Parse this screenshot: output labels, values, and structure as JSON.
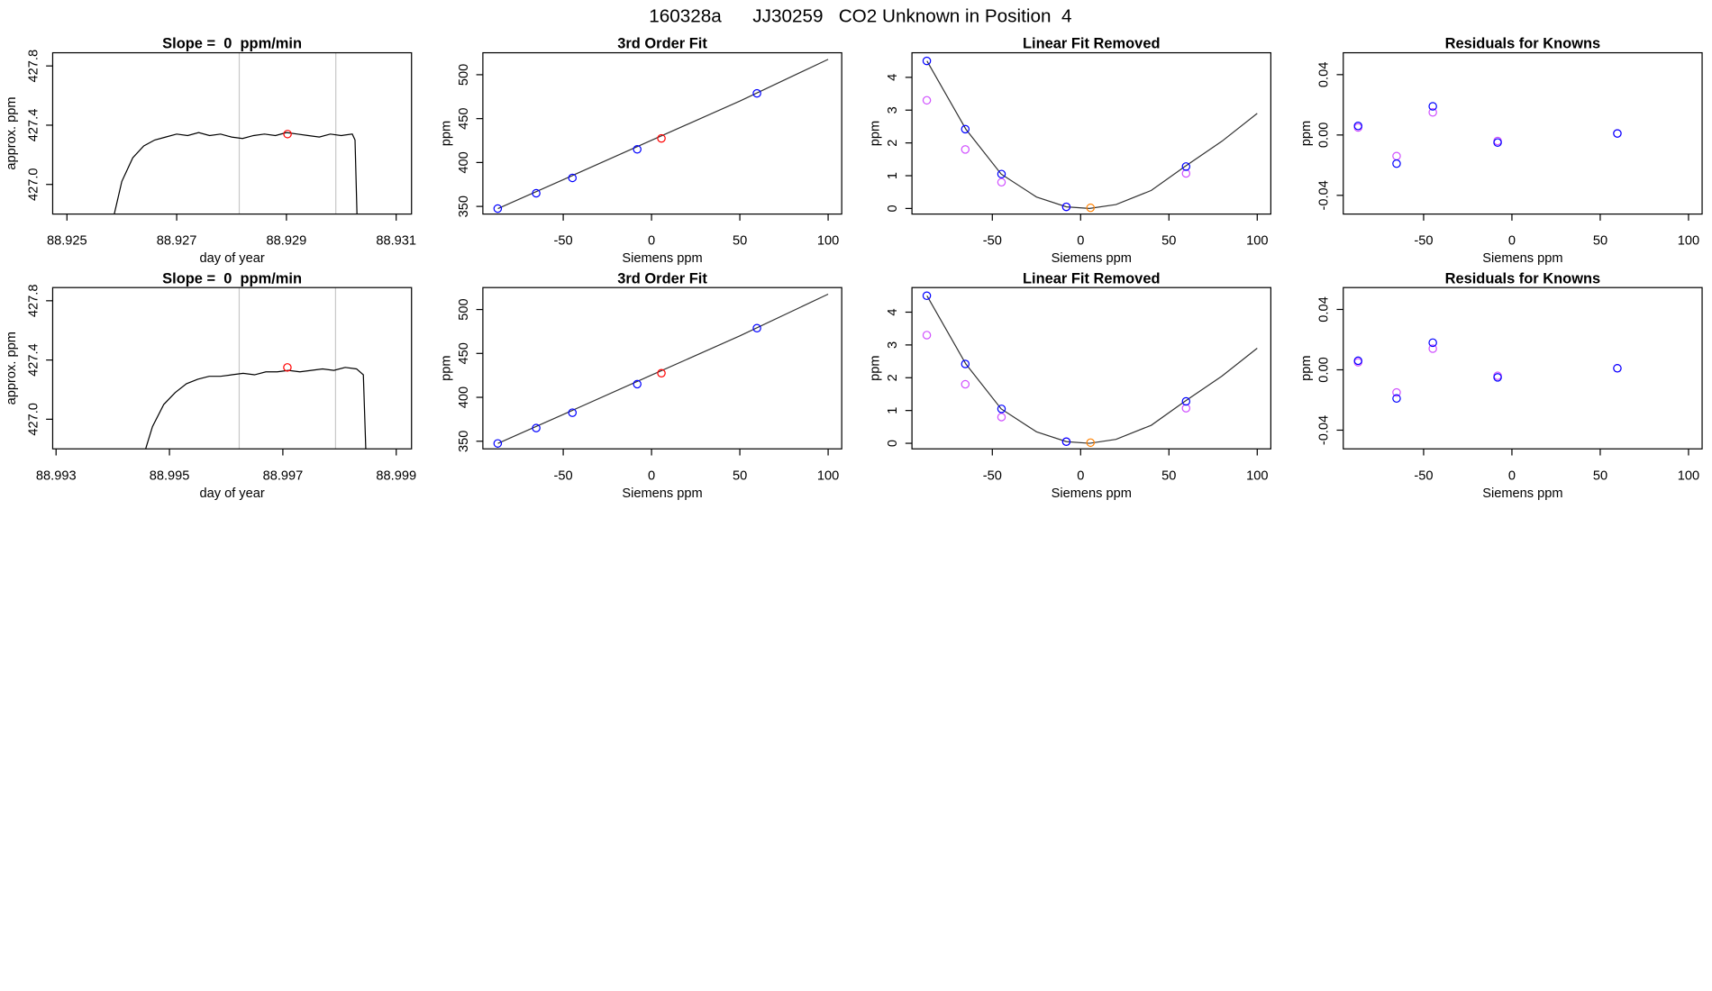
{
  "title": "160328a      JJ30259   CO2 Unknown in Position  4",
  "chart_data": [
    {
      "type": "line",
      "title": "Slope =  0  ppm/min",
      "xlabel": "day of year",
      "ylabel": "approx. ppm",
      "xlim": [
        88.92474,
        88.93128
      ],
      "ylim": [
        426.8,
        427.889
      ],
      "xticks": [
        88.925,
        88.927,
        88.929,
        88.931
      ],
      "yticks": [
        {
          "value": 427.0,
          "label": "427.0"
        },
        {
          "value": 427.4,
          "label": "427.4"
        },
        {
          "value": 427.8,
          "label": "427.8"
        }
      ],
      "vlines": [
        88.92814,
        88.9299
      ],
      "vline_color": "#c8c8c8",
      "series": [
        {
          "style": "line",
          "color": "#000000",
          "x": [
            88.9258,
            88.926,
            88.9262,
            88.9264,
            88.9266,
            88.9268,
            88.927,
            88.9272,
            88.9274,
            88.9276,
            88.9278,
            88.928,
            88.9282,
            88.9284,
            88.9286,
            88.9288,
            88.929,
            88.9292,
            88.9294,
            88.9296,
            88.9298,
            88.93,
            88.9302,
            88.93025,
            88.9303
          ],
          "values": [
            426.7,
            427.02,
            427.18,
            427.26,
            427.3,
            427.32,
            427.34,
            427.33,
            427.35,
            427.33,
            427.34,
            427.32,
            427.31,
            427.33,
            427.34,
            427.33,
            427.35,
            427.34,
            427.33,
            427.32,
            427.34,
            427.33,
            427.34,
            427.3,
            426.6
          ]
        },
        {
          "style": "points",
          "color": "#ff0000",
          "x": [
            88.92902
          ],
          "values": [
            427.34
          ]
        }
      ]
    },
    {
      "type": "scatter",
      "title": "3rd Order Fit",
      "xlabel": "Siemens ppm",
      "ylabel": "ppm",
      "xlim": [
        -95.5,
        107.7
      ],
      "ylim": [
        341.3,
        525
      ],
      "xticks": [
        -50,
        0,
        50,
        100
      ],
      "yticks": [
        350,
        400,
        450,
        500
      ],
      "series": [
        {
          "style": "line",
          "color": "#333333",
          "x": [
            -87,
            -50,
            0,
            50,
            100
          ],
          "values": [
            347.5,
            380.5,
            425.3,
            470,
            517.5
          ]
        },
        {
          "style": "points",
          "color": "#0000ff",
          "x": [
            -87.1,
            -65.3,
            -44.8,
            -8.1,
            59.7
          ],
          "values": [
            347.5,
            365,
            382.5,
            415,
            478.75
          ]
        },
        {
          "style": "points",
          "color": "#ff0000",
          "x": [
            5.6
          ],
          "values": [
            427.5
          ]
        }
      ]
    },
    {
      "type": "scatter",
      "title": "Linear Fit Removed",
      "xlabel": "Siemens ppm",
      "ylabel": "ppm",
      "xlim": [
        -95.5,
        107.7
      ],
      "ylim": [
        -0.17,
        4.75
      ],
      "xticks": [
        -50,
        0,
        50,
        100
      ],
      "yticks": [
        0,
        1,
        2,
        3,
        4
      ],
      "series": [
        {
          "style": "line",
          "color": "#333333",
          "x": [
            -87,
            -65,
            -45,
            -25,
            -8,
            5,
            20,
            40,
            59,
            80,
            100
          ],
          "values": [
            4.5,
            2.42,
            1.05,
            0.35,
            0.05,
            0,
            0.12,
            0.55,
            1.28,
            2.05,
            2.9
          ]
        },
        {
          "style": "points",
          "color": "#d050ff",
          "x": [
            -87.1,
            -65.3,
            -44.8,
            -8.1,
            59.7
          ],
          "values": [
            3.3,
            1.8,
            0.8,
            0.05,
            1.07
          ]
        },
        {
          "style": "points",
          "color": "#0000ff",
          "x": [
            -87.1,
            -65.3,
            -44.8,
            -8.1,
            59.7
          ],
          "values": [
            4.5,
            2.42,
            1.05,
            0.05,
            1.28
          ]
        },
        {
          "style": "points",
          "color": "#ff8000",
          "x": [
            5.6
          ],
          "values": [
            0.02
          ]
        }
      ]
    },
    {
      "type": "scatter",
      "title": "Residuals for Knowns",
      "xlabel": "Siemens ppm",
      "ylabel": "ppm",
      "xlim": [
        -95.5,
        107.7
      ],
      "ylim": [
        -0.0524,
        0.0545
      ],
      "xticks": [
        -50,
        0,
        50,
        100
      ],
      "yticks": [
        -0.04,
        {
          "value": 0,
          "label": "0.00"
        },
        0.04
      ],
      "series": [
        {
          "style": "points",
          "color": "#d050ff",
          "x": [
            -87.1,
            -65.3,
            -44.8,
            -8.1,
            59.7
          ],
          "values": [
            0.005,
            -0.014,
            0.015,
            -0.004,
            0.001
          ]
        },
        {
          "style": "points",
          "color": "#0000ff",
          "x": [
            -87.1,
            -65.3,
            -44.8,
            -8.1,
            59.7
          ],
          "values": [
            0.006,
            -0.019,
            0.019,
            -0.005,
            0.001
          ]
        }
      ]
    },
    {
      "type": "line",
      "title": "Slope =  0  ppm/min",
      "xlabel": "day of year",
      "ylabel": "approx. ppm",
      "xlim": [
        88.99294,
        88.99927
      ],
      "ylim": [
        426.8,
        427.889
      ],
      "xticks": [
        88.993,
        88.995,
        88.997,
        88.999
      ],
      "yticks": [
        {
          "value": 427.0,
          "label": "427.0"
        },
        {
          "value": 427.4,
          "label": "427.4"
        },
        {
          "value": 427.8,
          "label": "427.8"
        }
      ],
      "vlines": [
        88.99623,
        88.99793
      ],
      "vline_color": "#c8c8c8",
      "series": [
        {
          "style": "line",
          "color": "#000000",
          "x": [
            88.9945,
            88.9947,
            88.9949,
            88.9951,
            88.9953,
            88.9955,
            88.9957,
            88.9959,
            88.9961,
            88.9963,
            88.9965,
            88.9967,
            88.9969,
            88.9971,
            88.9973,
            88.9975,
            88.9977,
            88.9979,
            88.9981,
            88.9983,
            88.99842,
            88.99848
          ],
          "values": [
            426.7,
            426.95,
            427.1,
            427.18,
            427.24,
            427.27,
            427.29,
            427.29,
            427.3,
            427.31,
            427.3,
            427.32,
            427.32,
            427.33,
            427.32,
            427.33,
            427.34,
            427.33,
            427.35,
            427.34,
            427.3,
            426.6
          ]
        },
        {
          "style": "points",
          "color": "#ff0000",
          "x": [
            88.99708
          ],
          "values": [
            427.35
          ]
        }
      ]
    },
    {
      "type": "scatter",
      "title": "3rd Order Fit",
      "xlabel": "Siemens ppm",
      "ylabel": "ppm",
      "xlim": [
        -95.5,
        107.7
      ],
      "ylim": [
        341.3,
        525
      ],
      "xticks": [
        -50,
        0,
        50,
        100
      ],
      "yticks": [
        350,
        400,
        450,
        500
      ],
      "series": [
        {
          "style": "line",
          "color": "#333333",
          "x": [
            -87,
            -50,
            0,
            50,
            100
          ],
          "values": [
            347.5,
            380.5,
            425.3,
            470,
            517.5
          ]
        },
        {
          "style": "points",
          "color": "#0000ff",
          "x": [
            -87.1,
            -65.3,
            -44.8,
            -8.1,
            59.7
          ],
          "values": [
            347.5,
            365,
            382.5,
            415,
            478.75
          ]
        },
        {
          "style": "points",
          "color": "#ff0000",
          "x": [
            5.6
          ],
          "values": [
            427.5
          ]
        }
      ]
    },
    {
      "type": "scatter",
      "title": "Linear Fit Removed",
      "xlabel": "Siemens ppm",
      "ylabel": "ppm",
      "xlim": [
        -95.5,
        107.7
      ],
      "ylim": [
        -0.17,
        4.75
      ],
      "xticks": [
        -50,
        0,
        50,
        100
      ],
      "yticks": [
        0,
        1,
        2,
        3,
        4
      ],
      "series": [
        {
          "style": "line",
          "color": "#333333",
          "x": [
            -87,
            -65,
            -45,
            -25,
            -8,
            5,
            20,
            40,
            59,
            80,
            100
          ],
          "values": [
            4.5,
            2.42,
            1.05,
            0.35,
            0.05,
            0,
            0.12,
            0.55,
            1.28,
            2.05,
            2.9
          ]
        },
        {
          "style": "points",
          "color": "#d050ff",
          "x": [
            -87.1,
            -65.3,
            -44.8,
            -8.1,
            59.7
          ],
          "values": [
            3.3,
            1.8,
            0.8,
            0.05,
            1.07
          ]
        },
        {
          "style": "points",
          "color": "#0000ff",
          "x": [
            -87.1,
            -65.3,
            -44.8,
            -8.1,
            59.7
          ],
          "values": [
            4.5,
            2.42,
            1.05,
            0.05,
            1.28
          ]
        },
        {
          "style": "points",
          "color": "#ff8000",
          "x": [
            5.6
          ],
          "values": [
            0.02
          ]
        }
      ]
    },
    {
      "type": "scatter",
      "title": "Residuals for Knowns",
      "xlabel": "Siemens ppm",
      "ylabel": "ppm",
      "xlim": [
        -95.5,
        107.7
      ],
      "ylim": [
        -0.0524,
        0.0545
      ],
      "xticks": [
        -50,
        0,
        50,
        100
      ],
      "yticks": [
        -0.04,
        {
          "value": 0,
          "label": "0.00"
        },
        0.04
      ],
      "series": [
        {
          "style": "points",
          "color": "#d050ff",
          "x": [
            -87.1,
            -65.3,
            -44.8,
            -8.1,
            59.7
          ],
          "values": [
            0.005,
            -0.015,
            0.014,
            -0.004,
            0.001
          ]
        },
        {
          "style": "points",
          "color": "#0000ff",
          "x": [
            -87.1,
            -65.3,
            -44.8,
            -8.1,
            59.7
          ],
          "values": [
            0.006,
            -0.019,
            0.018,
            -0.005,
            0.001
          ]
        }
      ]
    }
  ]
}
